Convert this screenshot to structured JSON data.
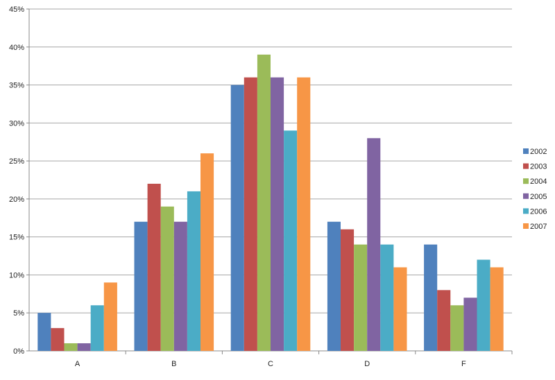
{
  "chart_data": {
    "type": "bar",
    "categories": [
      "A",
      "B",
      "C",
      "D",
      "F"
    ],
    "series": [
      {
        "name": "2002",
        "color": "#4F81BD",
        "values": [
          5,
          17,
          35,
          17,
          14
        ]
      },
      {
        "name": "2003",
        "color": "#C0504D",
        "values": [
          3,
          22,
          36,
          16,
          8
        ]
      },
      {
        "name": "2004",
        "color": "#9BBB59",
        "values": [
          1,
          19,
          39,
          14,
          6
        ]
      },
      {
        "name": "2005",
        "color": "#8064A2",
        "values": [
          1,
          17,
          36,
          28,
          7
        ]
      },
      {
        "name": "2006",
        "color": "#4BACC6",
        "values": [
          6,
          21,
          29,
          14,
          12
        ]
      },
      {
        "name": "2007",
        "color": "#F79646",
        "values": [
          9,
          26,
          36,
          11,
          11
        ]
      }
    ],
    "yticks": [
      "0%",
      "5%",
      "10%",
      "15%",
      "20%",
      "25%",
      "30%",
      "35%",
      "40%",
      "45%"
    ],
    "ylim": [
      0,
      45
    ],
    "grid": true,
    "legend": "right"
  }
}
